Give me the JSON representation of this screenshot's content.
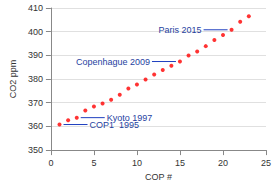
{
  "chart_data": {
    "type": "scatter",
    "x_label": "COP #",
    "y_label": "CO2 ppm",
    "x": [
      1,
      2,
      3,
      4,
      5,
      6,
      7,
      8,
      9,
      10,
      11,
      12,
      13,
      14,
      15,
      16,
      17,
      18,
      19,
      20,
      21,
      22,
      23
    ],
    "values": [
      360.8,
      362.6,
      363.7,
      366.7,
      368.4,
      369.7,
      371.3,
      373.4,
      376.0,
      377.7,
      379.8,
      381.9,
      383.8,
      385.6,
      387.4,
      389.9,
      391.6,
      393.9,
      396.5,
      398.6,
      400.8,
      404.2,
      406.5
    ],
    "color": "#ff0000",
    "marker": "circle",
    "xlim": [
      0,
      25
    ],
    "xticks": [
      0,
      5,
      10,
      15,
      20,
      25
    ],
    "ylim": [
      350,
      410
    ],
    "yticks": [
      350,
      360,
      370,
      380,
      390,
      400,
      410
    ],
    "grid": true,
    "annotations": [
      {
        "text": "COP1  1995",
        "x": 1,
        "y": 360.8
      },
      {
        "text": "Kyoto 1997",
        "x": 3,
        "y": 363.7
      },
      {
        "text": "Copenhague 2009",
        "x": 15,
        "y": 387.4
      },
      {
        "text": "Paris 2015",
        "x": 21,
        "y": 400.8
      }
    ]
  }
}
